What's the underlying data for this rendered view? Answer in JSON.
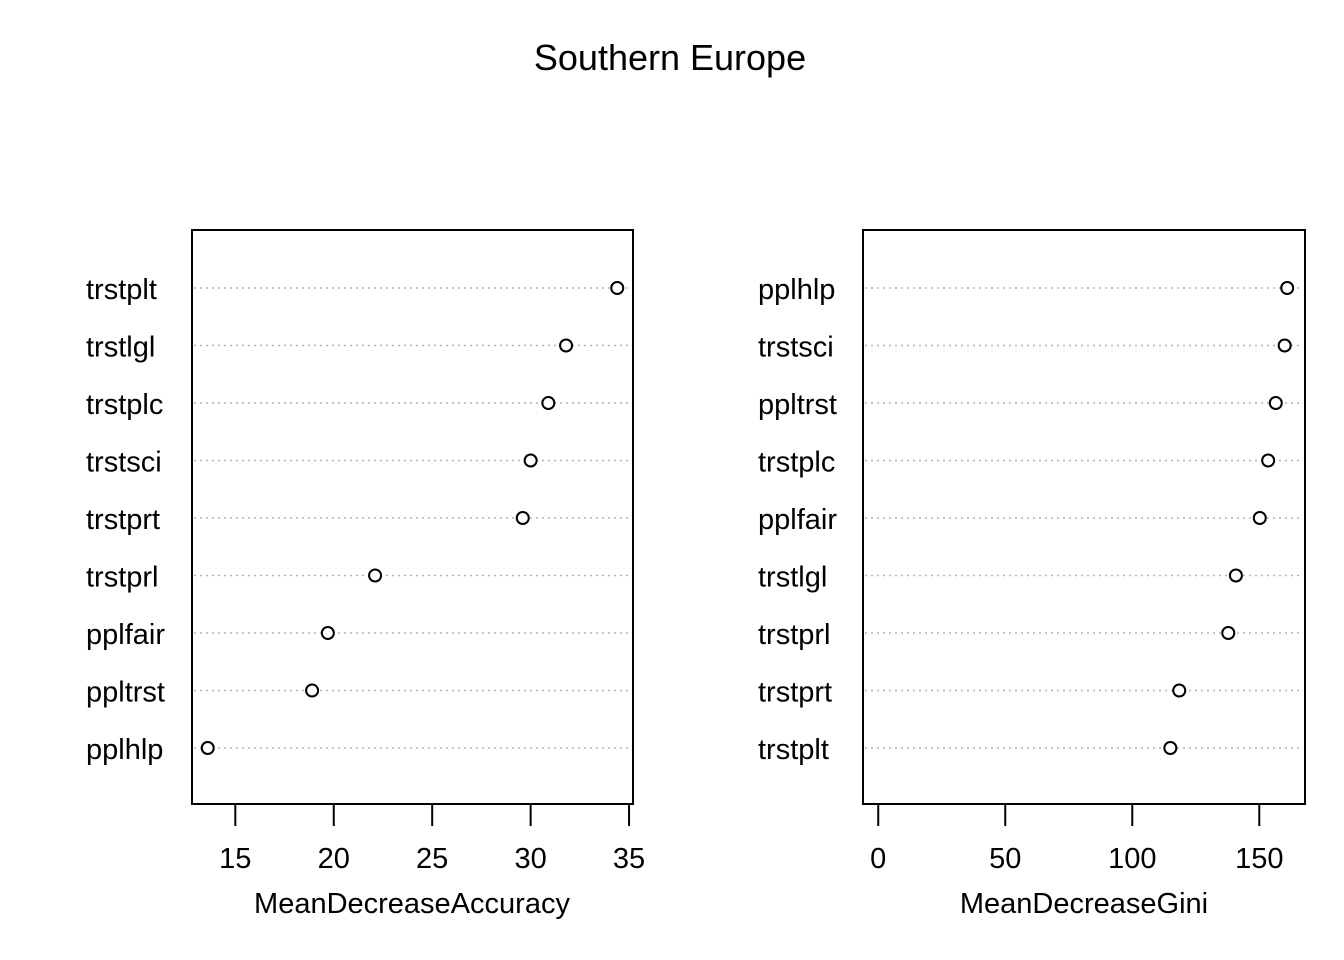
{
  "title": "Southern Europe",
  "chart_data": [
    {
      "type": "scatter",
      "title": "Southern Europe",
      "xlabel": "MeanDecreaseAccuracy",
      "ylabel": "",
      "xlim": [
        12.8,
        35.2
      ],
      "xticks": [
        15,
        20,
        25,
        30,
        35
      ],
      "grid": "dotted horizontal lines per row",
      "categories": [
        "trstplt",
        "trstlgl",
        "trstplc",
        "trstsci",
        "trstprt",
        "trstprl",
        "pplfair",
        "ppltrst",
        "pplhlp"
      ],
      "values": [
        34.4,
        31.8,
        30.9,
        30.0,
        29.6,
        22.1,
        19.7,
        18.9,
        13.6
      ]
    },
    {
      "type": "scatter",
      "title": "Southern Europe",
      "xlabel": "MeanDecreaseGini",
      "ylabel": "",
      "xlim": [
        -6,
        168
      ],
      "xticks": [
        0,
        50,
        100,
        150
      ],
      "grid": "dotted horizontal lines per row",
      "categories": [
        "pplhlp",
        "trstsci",
        "ppltrst",
        "trstplc",
        "pplfair",
        "trstlgl",
        "trstprl",
        "trstprt",
        "trstplt"
      ],
      "values": [
        161.0,
        160.0,
        156.5,
        153.5,
        150.2,
        140.8,
        137.8,
        118.5,
        115.0
      ]
    }
  ]
}
